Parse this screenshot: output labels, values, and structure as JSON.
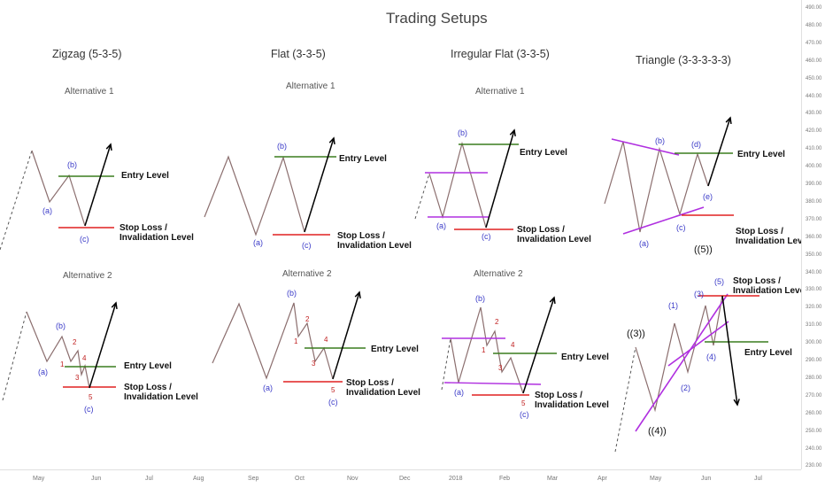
{
  "chart_data": {
    "type": "line",
    "title": "Trading Setups",
    "panels": [
      {
        "heading": "Zigzag (5-3-5)",
        "alternatives": [
          "Alternative 1",
          "Alternative 2"
        ]
      },
      {
        "heading": "Flat (3-3-5)",
        "alternatives": [
          "Alternative 1",
          "Alternative 2"
        ]
      },
      {
        "heading": "Irregular Flat (3-3-5)",
        "alternatives": [
          "Alternative 1",
          "Alternative 2"
        ]
      },
      {
        "heading": "Triangle (3-3-3-3-3)",
        "alternatives": []
      }
    ],
    "level_labels": {
      "entry": "Entry Level",
      "stop_loss": "Stop Loss /",
      "invalidation": "Invalidation Level"
    },
    "wave_labels": [
      "(a)",
      "(b)",
      "(c)",
      "(d)",
      "(e)",
      "((5))",
      "((3))",
      "((4))",
      "(1)",
      "(2)",
      "(3)",
      "(4)",
      "(5)",
      "1",
      "2",
      "3",
      "4",
      "5"
    ],
    "colors": {
      "price": "#8b6e6e",
      "entry": "#3a7d1e",
      "stop": "#e02020",
      "trendline": "#b030e0",
      "projection": "#000000",
      "wave_label": "#3a3ac8",
      "subwave_label": "#c02020"
    },
    "y_axis": {
      "ticks": [
        "490.00",
        "480.00",
        "470.00",
        "460.00",
        "450.00",
        "440.00",
        "430.00",
        "420.00",
        "410.00",
        "400.00",
        "390.00",
        "380.00",
        "370.00",
        "360.00",
        "350.00",
        "340.00",
        "330.00",
        "320.00",
        "310.00",
        "300.00",
        "290.00",
        "280.00",
        "270.00",
        "260.00",
        "250.00",
        "240.00",
        "230.00"
      ]
    },
    "x_axis": {
      "ticks": [
        "May",
        "Jun",
        "Jul",
        "Aug",
        "Sep",
        "Oct",
        "Nov",
        "Dec",
        "2018",
        "Feb",
        "Mar",
        "Apr",
        "May",
        "Jun",
        "Jul"
      ]
    }
  }
}
